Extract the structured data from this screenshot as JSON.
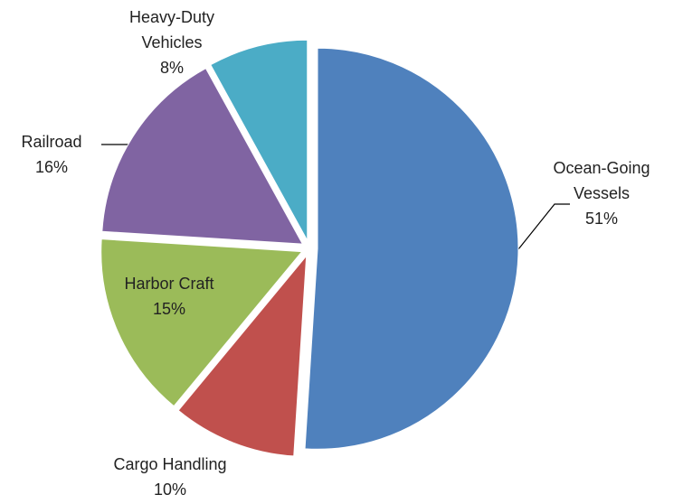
{
  "chart_data": {
    "type": "pie",
    "categories": [
      "Ocean-Going Vessels",
      "Cargo Handling",
      "Harbor Craft",
      "Railroad",
      "Heavy-Duty Vehicles"
    ],
    "values": [
      51,
      10,
      15,
      16,
      8
    ],
    "value_labels": [
      "51%",
      "10%",
      "15%",
      "16%",
      "8%"
    ],
    "colors": [
      "#4f81bd",
      "#c0504d",
      "#9bbb59",
      "#8064a2",
      "#4bacc6"
    ]
  }
}
